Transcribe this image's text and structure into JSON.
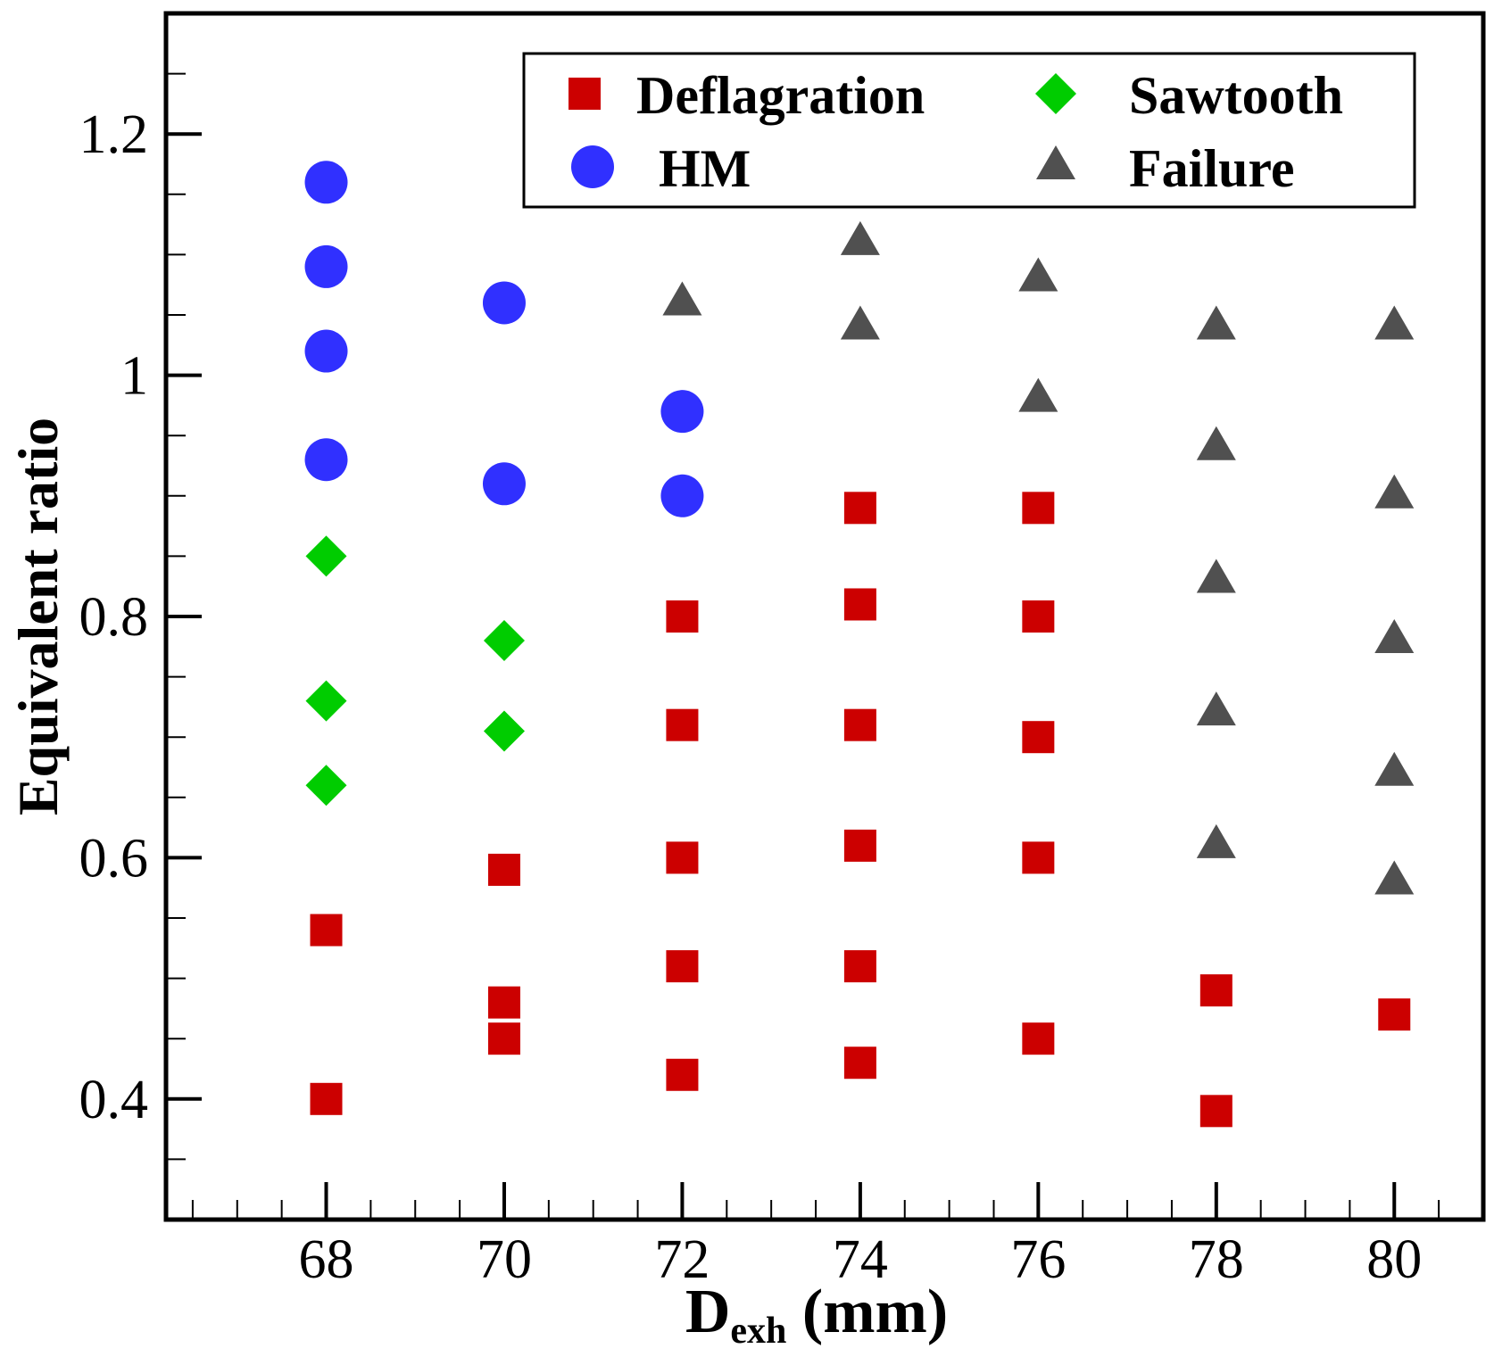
{
  "chart_data": {
    "type": "scatter",
    "title": "",
    "xlabel": {
      "main": "D",
      "subscript": "exh",
      "unit": " (mm)"
    },
    "ylabel": "Equivalent ratio",
    "xlim": [
      66.2,
      81
    ],
    "ylim": [
      0.3,
      1.3
    ],
    "x_ticks": [
      68,
      70,
      72,
      74,
      76,
      78,
      80
    ],
    "x_tick_labels": [
      "68",
      "70",
      "72",
      "74",
      "76",
      "78",
      "80"
    ],
    "x_minor_step": 0.5,
    "y_ticks": [
      0.4,
      0.6,
      0.8,
      1.0,
      1.2
    ],
    "y_tick_labels": [
      "0.4",
      "0.6",
      "0.8",
      "1",
      "1.2"
    ],
    "y_minor_step": 0.05,
    "grid": false,
    "legend_position": "top-right",
    "series": [
      {
        "name": "Deflagration",
        "marker": "square",
        "color": "#cc0000",
        "points": [
          [
            68,
            0.54
          ],
          [
            68,
            0.4
          ],
          [
            70,
            0.59
          ],
          [
            70,
            0.48
          ],
          [
            70,
            0.45
          ],
          [
            72,
            0.8
          ],
          [
            72,
            0.71
          ],
          [
            72,
            0.6
          ],
          [
            72,
            0.51
          ],
          [
            72,
            0.42
          ],
          [
            74,
            0.89
          ],
          [
            74,
            0.81
          ],
          [
            74,
            0.71
          ],
          [
            74,
            0.61
          ],
          [
            74,
            0.51
          ],
          [
            74,
            0.43
          ],
          [
            76,
            0.89
          ],
          [
            76,
            0.8
          ],
          [
            76,
            0.7
          ],
          [
            76,
            0.6
          ],
          [
            76,
            0.45
          ],
          [
            78,
            0.49
          ],
          [
            78,
            0.39
          ],
          [
            80,
            0.47
          ]
        ]
      },
      {
        "name": "Sawtooth",
        "marker": "diamond",
        "color": "#00cc00",
        "points": [
          [
            68,
            0.85
          ],
          [
            68,
            0.73
          ],
          [
            68,
            0.66
          ],
          [
            70,
            0.78
          ],
          [
            70,
            0.705
          ]
        ]
      },
      {
        "name": "HM",
        "marker": "circle",
        "color": "#3030ff",
        "points": [
          [
            68,
            1.16
          ],
          [
            68,
            1.09
          ],
          [
            68,
            1.02
          ],
          [
            68,
            0.93
          ],
          [
            70,
            1.06
          ],
          [
            70,
            0.91
          ],
          [
            72,
            0.97
          ],
          [
            72,
            0.9
          ]
        ]
      },
      {
        "name": "Failure",
        "marker": "triangle",
        "color": "#505050",
        "points": [
          [
            72,
            1.06
          ],
          [
            74,
            1.11
          ],
          [
            74,
            1.04
          ],
          [
            76,
            1.08
          ],
          [
            76,
            0.98
          ],
          [
            78,
            1.04
          ],
          [
            78,
            0.94
          ],
          [
            78,
            0.83
          ],
          [
            78,
            0.72
          ],
          [
            78,
            0.61
          ],
          [
            80,
            1.04
          ],
          [
            80,
            0.9
          ],
          [
            80,
            0.78
          ],
          [
            80,
            0.67
          ],
          [
            80,
            0.58
          ]
        ]
      }
    ]
  }
}
